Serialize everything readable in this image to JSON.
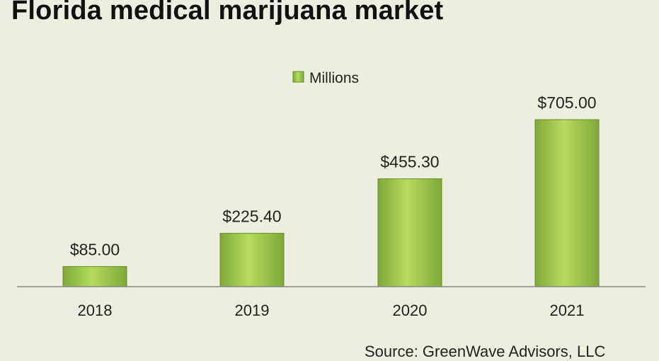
{
  "chart_data": {
    "type": "bar",
    "title": "Florida medical marijuana market",
    "categories": [
      "2018",
      "2019",
      "2020",
      "2021"
    ],
    "series": [
      {
        "name": "Millions",
        "values": [
          85.0,
          225.4,
          455.3,
          705.0
        ],
        "labels": [
          "$85.00",
          "$225.40",
          "$455.30",
          "$705.00"
        ]
      }
    ],
    "legend_position": "top-center",
    "grid": false,
    "ylim": [
      0,
      705
    ],
    "source": "Source: GreenWave  Advisors, LLC"
  },
  "colors": {
    "bar_light": "#b5dc5c",
    "bar_dark": "#7fa83a",
    "background": "#ecefdf",
    "axis": "#888888"
  }
}
